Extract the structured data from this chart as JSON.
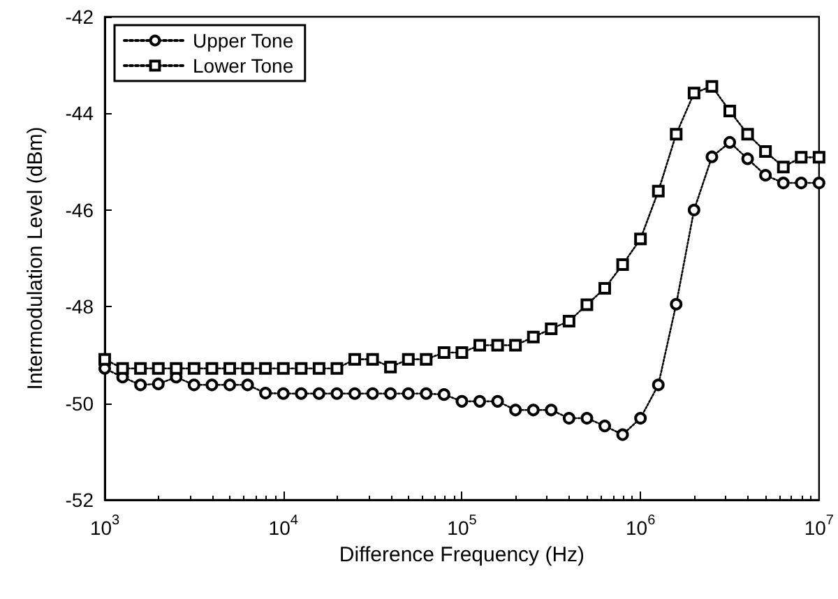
{
  "chart_data": {
    "type": "line",
    "xlabel": "Difference Frequency (Hz)",
    "ylabel": "Intermodulation Level (dBm)",
    "log": "x",
    "grid": false,
    "legend": "top left",
    "line_style": "dotted",
    "xlim": [
      1000,
      10000000
    ],
    "ylim": [
      -52,
      -42
    ],
    "xticks": [
      {
        "value": 1000,
        "label": "10$^{3}$"
      },
      {
        "value": 10000,
        "label": "10$^{4}$"
      },
      {
        "value": 100000,
        "label": "10$^{5}$"
      },
      {
        "value": 1000000,
        "label": "10$^{6}$"
      },
      {
        "value": 10000000,
        "label": "10$^{7}$"
      }
    ],
    "yticks": [
      -52,
      -50,
      -48,
      -46,
      -44,
      -42
    ],
    "x": [
      1000,
      1259,
      1585,
      1995,
      2512,
      3162,
      3981,
      5012,
      6310,
      7943,
      10000,
      12589,
      15849,
      19953,
      25119,
      31623,
      39811,
      50119,
      63096,
      79433,
      100000,
      125893,
      158489,
      199526,
      251189,
      316228,
      398107,
      501187,
      630957,
      794328,
      1000000,
      1258925,
      1584893,
      1995262,
      2511886,
      3162278,
      3981072,
      5011872,
      6309573,
      7943282,
      10000000
    ],
    "series": [
      {
        "name": "Upper Tone",
        "color": "#000000",
        "marker": "circle",
        "values": [
          -49.28,
          -49.46,
          -49.62,
          -49.6,
          -49.46,
          -49.62,
          -49.62,
          -49.62,
          -49.62,
          -49.79,
          -49.8,
          -49.8,
          -49.8,
          -49.8,
          -49.8,
          -49.8,
          -49.8,
          -49.8,
          -49.8,
          -49.82,
          -49.96,
          -49.96,
          -49.96,
          -50.14,
          -50.14,
          -50.14,
          -50.31,
          -50.31,
          -50.47,
          -50.65,
          -50.31,
          -49.62,
          -47.95,
          -46.0,
          -44.9,
          -44.6,
          -44.94,
          -45.28,
          -45.44,
          -45.44,
          -45.44
        ]
      },
      {
        "name": "Lower Tone",
        "color": "#000000",
        "marker": "square",
        "values": [
          -49.09,
          -49.28,
          -49.28,
          -49.28,
          -49.28,
          -49.28,
          -49.28,
          -49.28,
          -49.28,
          -49.28,
          -49.28,
          -49.28,
          -49.28,
          -49.28,
          -49.09,
          -49.09,
          -49.25,
          -49.09,
          -49.09,
          -48.95,
          -48.95,
          -48.8,
          -48.8,
          -48.8,
          -48.63,
          -48.46,
          -48.3,
          -47.96,
          -47.62,
          -47.13,
          -46.6,
          -45.61,
          -44.43,
          -43.58,
          -43.44,
          -43.95,
          -44.43,
          -44.79,
          -45.11,
          -44.91,
          -44.91
        ]
      }
    ]
  }
}
